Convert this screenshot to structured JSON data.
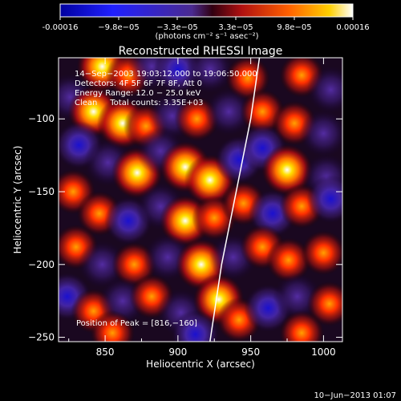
{
  "chart_data": {
    "type": "heatmap",
    "title": "Reconstructed RHESSI Image",
    "xlabel": "Heliocentric X (arcsec)",
    "ylabel": "Heliocentric Y (arcsec)",
    "xlim": [
      818,
      1013
    ],
    "ylim": [
      -253,
      -58
    ],
    "x_ticks": [
      850,
      900,
      950,
      1000
    ],
    "y_ticks": [
      -250,
      -200,
      -150,
      -100
    ],
    "colorbar": {
      "min": -0.00016,
      "max": 0.00016,
      "tick_labels": [
        "-0.00016",
        "−9.8e−05",
        "−3.3e−05",
        "3.3e−05",
        "9.8e−05",
        "0.00016"
      ],
      "unit_label": "(photons cm⁻² s⁻¹ asec⁻²)"
    },
    "info_lines": [
      "14−Sep−2003 19:03:12.000 to 19:06:50.000",
      "Detectors: 4F 5F 6F 7F 8F, Att 0",
      "Energy Range: 12.0 − 25.0 keV",
      "Clean     Total counts: 3.35E+03"
    ],
    "peak_label": "Position of Peak = [816,−160]",
    "blobs": [
      {
        "x": 848,
        "y": -64,
        "v": 1.0
      },
      {
        "x": 866,
        "y": -70,
        "v": 0.8
      },
      {
        "x": 882,
        "y": -64,
        "v": -0.6
      },
      {
        "x": 900,
        "y": -66,
        "v": -0.7
      },
      {
        "x": 922,
        "y": -66,
        "v": -0.4
      },
      {
        "x": 948,
        "y": -72,
        "v": 0.8
      },
      {
        "x": 985,
        "y": -70,
        "v": 0.7
      },
      {
        "x": 1005,
        "y": -80,
        "v": -0.5
      },
      {
        "x": 826,
        "y": -85,
        "v": -0.6
      },
      {
        "x": 842,
        "y": -95,
        "v": 0.9
      },
      {
        "x": 862,
        "y": -103,
        "v": 1.0
      },
      {
        "x": 878,
        "y": -105,
        "v": 0.4
      },
      {
        "x": 896,
        "y": -98,
        "v": -0.6
      },
      {
        "x": 913,
        "y": -100,
        "v": 0.5
      },
      {
        "x": 935,
        "y": -95,
        "v": -0.5
      },
      {
        "x": 958,
        "y": -95,
        "v": 0.4
      },
      {
        "x": 980,
        "y": -103,
        "v": 0.8
      },
      {
        "x": 1000,
        "y": -110,
        "v": -0.3
      },
      {
        "x": 832,
        "y": -118,
        "v": -1.0
      },
      {
        "x": 852,
        "y": -130,
        "v": -0.5
      },
      {
        "x": 872,
        "y": -137,
        "v": 1.0
      },
      {
        "x": 888,
        "y": -122,
        "v": -0.5
      },
      {
        "x": 905,
        "y": -133,
        "v": 0.9
      },
      {
        "x": 922,
        "y": -142,
        "v": 1.0
      },
      {
        "x": 942,
        "y": -128,
        "v": -0.7
      },
      {
        "x": 958,
        "y": -120,
        "v": -0.9
      },
      {
        "x": 975,
        "y": -135,
        "v": 0.9
      },
      {
        "x": 1002,
        "y": -140,
        "v": -0.5
      },
      {
        "x": 828,
        "y": -150,
        "v": 0.8
      },
      {
        "x": 846,
        "y": -165,
        "v": 0.5
      },
      {
        "x": 866,
        "y": -170,
        "v": -0.7
      },
      {
        "x": 888,
        "y": -160,
        "v": -0.6
      },
      {
        "x": 905,
        "y": -170,
        "v": 0.9
      },
      {
        "x": 925,
        "y": -168,
        "v": 0.7
      },
      {
        "x": 945,
        "y": -158,
        "v": 0.8
      },
      {
        "x": 965,
        "y": -165,
        "v": -0.7
      },
      {
        "x": 985,
        "y": -160,
        "v": 0.7
      },
      {
        "x": 1005,
        "y": -155,
        "v": -0.9
      },
      {
        "x": 830,
        "y": -188,
        "v": 0.6
      },
      {
        "x": 848,
        "y": -200,
        "v": -0.6
      },
      {
        "x": 870,
        "y": -200,
        "v": 0.6
      },
      {
        "x": 893,
        "y": -195,
        "v": -0.5
      },
      {
        "x": 916,
        "y": -200,
        "v": 1.0
      },
      {
        "x": 938,
        "y": -195,
        "v": -0.6
      },
      {
        "x": 958,
        "y": -188,
        "v": 0.6
      },
      {
        "x": 976,
        "y": -197,
        "v": 0.5
      },
      {
        "x": 1000,
        "y": -192,
        "v": 0.5
      },
      {
        "x": 824,
        "y": -222,
        "v": -0.9
      },
      {
        "x": 842,
        "y": -232,
        "v": 0.8
      },
      {
        "x": 862,
        "y": -225,
        "v": -0.5
      },
      {
        "x": 882,
        "y": -222,
        "v": 0.7
      },
      {
        "x": 902,
        "y": -233,
        "v": -0.6
      },
      {
        "x": 928,
        "y": -224,
        "v": 1.0
      },
      {
        "x": 942,
        "y": -238,
        "v": 0.5
      },
      {
        "x": 962,
        "y": -230,
        "v": -0.8
      },
      {
        "x": 982,
        "y": -222,
        "v": -0.5
      },
      {
        "x": 1004,
        "y": -227,
        "v": 0.7
      },
      {
        "x": 855,
        "y": -247,
        "v": 0.8
      },
      {
        "x": 912,
        "y": -248,
        "v": -0.9
      },
      {
        "x": 985,
        "y": -247,
        "v": 0.6
      }
    ],
    "limb_arc": [
      [
        922,
        -253
      ],
      [
        930,
        -200
      ],
      [
        940,
        -150
      ],
      [
        950,
        -100
      ],
      [
        956,
        -58
      ]
    ]
  },
  "colors": {
    "background": "#000000",
    "foreground": "#ffffff",
    "colormap": [
      "#0000a0",
      "#2020ff",
      "#5a2cc0",
      "#ff3010",
      "#ffc000",
      "#ffffff"
    ]
  },
  "footer": {
    "date": "10−Jun−2013 01:07"
  }
}
